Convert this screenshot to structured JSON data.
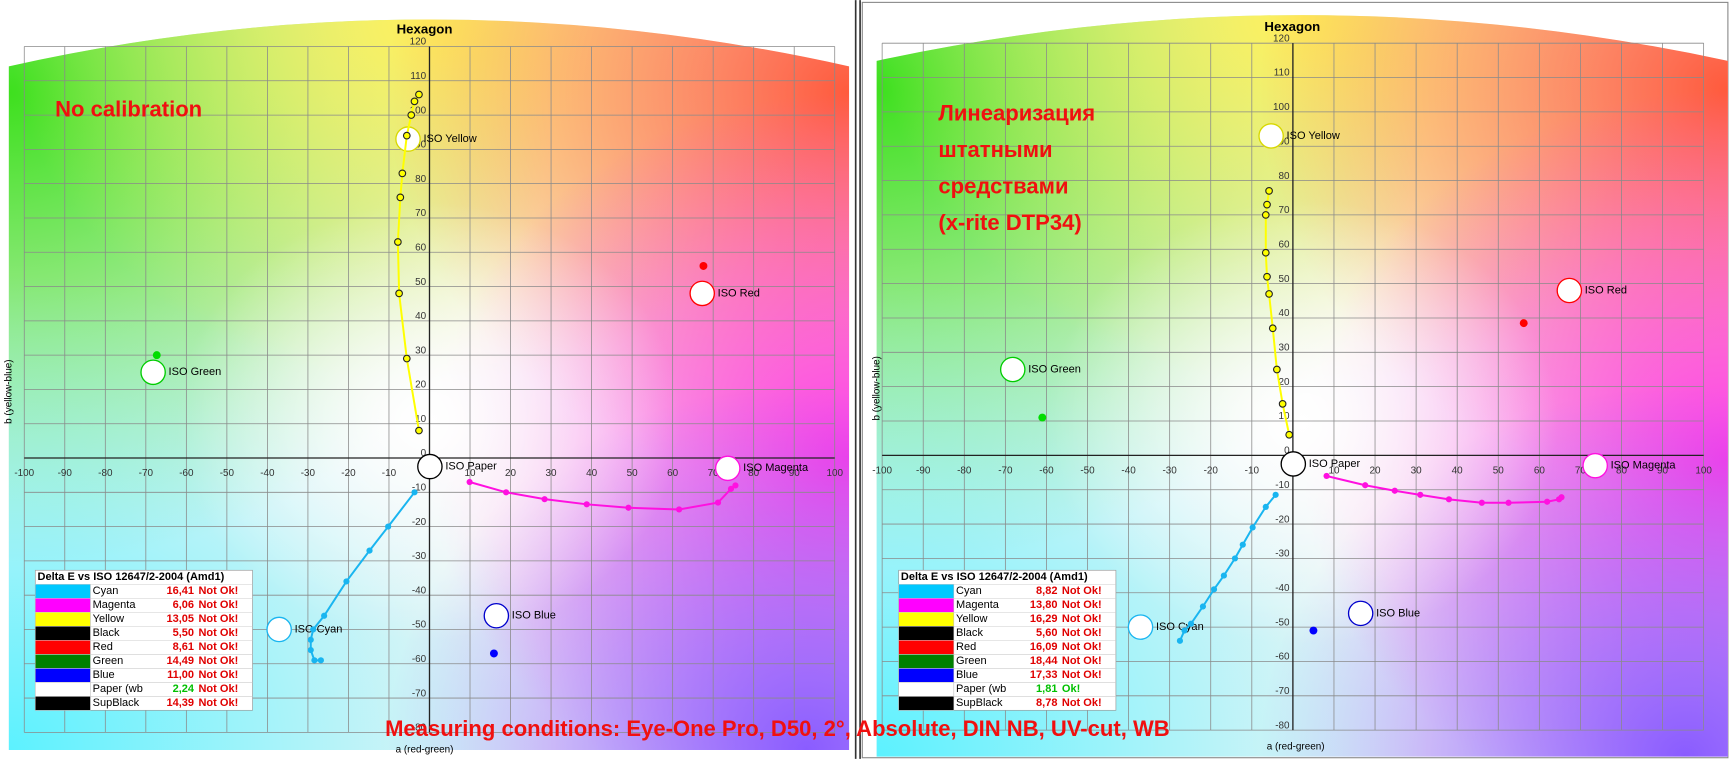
{
  "caption": "Measuring conditions: Eye-One Pro, D50, 2°, Absolute, DIN NB, UV-cut, WB",
  "chart_data": [
    {
      "type": "scatter",
      "title": "Hexagon",
      "x_label": "a (red-green)",
      "y_label": "b (yellow-blue)",
      "annotation": [
        "No calibration"
      ],
      "xlim": [
        -100,
        100
      ],
      "ylim": [
        -80,
        120
      ],
      "xticks": [
        -100,
        -90,
        -80,
        -70,
        -60,
        -50,
        -40,
        -30,
        -20,
        -10,
        0,
        10,
        20,
        30,
        40,
        50,
        60,
        70,
        80,
        90,
        100
      ],
      "yticks": [
        -80,
        -70,
        -60,
        -50,
        -40,
        -30,
        -20,
        -10,
        0,
        10,
        20,
        30,
        40,
        50,
        60,
        70,
        80,
        90,
        100,
        110,
        120
      ],
      "grid": true,
      "series": [
        {
          "color": "#ffff00",
          "line": true,
          "marker": "outlined",
          "x": [
            -2.6,
            -5.6,
            -7.5,
            -7.8,
            -7.2,
            -6.7,
            -5.6,
            -4.5,
            -3.7,
            -2.6
          ],
          "values": [
            8,
            29,
            48,
            63,
            76,
            83,
            94,
            100,
            104,
            106
          ]
        },
        {
          "color": "#19b5f0",
          "line": true,
          "marker": "dot",
          "x": [
            -3.7,
            -10.2,
            -14.8,
            -20.5,
            -26,
            -28.7,
            -29.3,
            -29.3,
            -28.4,
            -26.8
          ],
          "values": [
            -10,
            -20,
            -27,
            -36,
            -46,
            -50,
            -53,
            -56,
            -59,
            -59
          ]
        },
        {
          "color": "#ff10e0",
          "line": true,
          "marker": "dot",
          "x": [
            9.9,
            18.9,
            28.4,
            38.8,
            49.1,
            61.6,
            71.2,
            74.4,
            75.5
          ],
          "values": [
            -7,
            -10,
            -12,
            -13.5,
            -14.5,
            -15,
            -13,
            -9,
            -8
          ]
        },
        {
          "color": "#ff0000",
          "line": false,
          "marker": "dot",
          "x": [
            67.6
          ],
          "values": [
            56
          ]
        },
        {
          "color": "#00dd00",
          "line": false,
          "marker": "dot",
          "x": [
            -67.3
          ],
          "values": [
            30
          ]
        },
        {
          "color": "#0000ff",
          "line": false,
          "marker": "dot",
          "x": [
            15.9
          ],
          "values": [
            -57
          ]
        }
      ],
      "targets": [
        {
          "label": "ISO Yellow",
          "color": "#d8d800",
          "a": -5.3,
          "b": 93
        },
        {
          "label": "ISO Red",
          "color": "#ff0000",
          "a": 67.3,
          "b": 48
        },
        {
          "label": "ISO Green",
          "color": "#00cc00",
          "a": -68.2,
          "b": 25
        },
        {
          "label": "ISO Cyan",
          "color": "#19b5f0",
          "a": -37.1,
          "b": -50
        },
        {
          "label": "ISO Blue",
          "color": "#0000cc",
          "a": 16.5,
          "b": -46
        },
        {
          "label": "ISO Magenta",
          "color": "#ff10e0",
          "a": 73.6,
          "b": -3
        },
        {
          "label": "ISO Paper",
          "color": "#000000",
          "a": 0.1,
          "b": -2.5
        }
      ],
      "table": {
        "title": "Delta E vs ISO 12647/2-2004 (Amd1)",
        "rows": [
          {
            "name": "Cyan",
            "color": "#00c8ff",
            "value": "16,41",
            "value_color": "#e00000",
            "status": "Not Ok!",
            "status_color": "#e00000"
          },
          {
            "name": "Magenta",
            "color": "#ff00ff",
            "value": "6,06",
            "value_color": "#e00000",
            "status": "Not Ok!",
            "status_color": "#e00000"
          },
          {
            "name": "Yellow",
            "color": "#ffff00",
            "value": "13,05",
            "value_color": "#e00000",
            "status": "Not Ok!",
            "status_color": "#e00000"
          },
          {
            "name": "Black",
            "color": "#000000",
            "value": "5,50",
            "value_color": "#e00000",
            "status": "Not Ok!",
            "status_color": "#e00000"
          },
          {
            "name": "Red",
            "color": "#ff0000",
            "value": "8,61",
            "value_color": "#e00000",
            "status": "Not Ok!",
            "status_color": "#e00000"
          },
          {
            "name": "Green",
            "color": "#008000",
            "value": "14,49",
            "value_color": "#e00000",
            "status": "Not Ok!",
            "status_color": "#e00000"
          },
          {
            "name": "Blue",
            "color": "#0000ff",
            "value": "11,00",
            "value_color": "#e00000",
            "status": "Not Ok!",
            "status_color": "#e00000"
          },
          {
            "name": "Paper (wb",
            "color": "#ffffff",
            "value": "2,24",
            "value_color": "#00c000",
            "status": "Not Ok!",
            "status_color": "#e00000"
          },
          {
            "name": "SupBlack",
            "color": "#000000",
            "value": "14,39",
            "value_color": "#e00000",
            "status": "Not Ok!",
            "status_color": "#e00000"
          }
        ]
      }
    },
    {
      "type": "scatter",
      "title": "Hexagon",
      "x_label": "a (red-green)",
      "y_label": "b (yellow-blue)",
      "annotation": [
        "Линеаризация",
        "штатными",
        "средствами",
        "(x-rite DTP34)"
      ],
      "xlim": [
        -100,
        100
      ],
      "ylim": [
        -80,
        120
      ],
      "xticks": [
        -100,
        -90,
        -80,
        -70,
        -60,
        -50,
        -40,
        -30,
        -20,
        -10,
        0,
        10,
        20,
        30,
        40,
        50,
        60,
        70,
        80,
        90,
        100
      ],
      "yticks": [
        -80,
        -70,
        -60,
        -50,
        -40,
        -30,
        -20,
        -10,
        0,
        10,
        20,
        30,
        40,
        50,
        60,
        70,
        80,
        90,
        100,
        110,
        120
      ],
      "grid": true,
      "series": [
        {
          "color": "#ffff00",
          "line": true,
          "marker": "outlined",
          "x": [
            -0.9,
            -2.5,
            -3.9,
            -4.9,
            -5.8,
            -6.3,
            -6.6,
            -6.6,
            -6.3,
            -5.8
          ],
          "values": [
            6,
            15,
            25,
            37,
            47,
            52,
            59,
            70,
            73,
            77
          ]
        },
        {
          "color": "#19b5f0",
          "line": true,
          "marker": "dot",
          "x": [
            -4.2,
            -6.6,
            -9.8,
            -12.2,
            -14.1,
            -16.8,
            -19.2,
            -21.9,
            -24.8,
            -26.4,
            -27.5
          ],
          "values": [
            -11.5,
            -15,
            -21,
            -26,
            -30,
            -35,
            -39,
            -44,
            -49,
            -51,
            -54
          ]
        },
        {
          "color": "#ff10e0",
          "line": true,
          "marker": "dot",
          "x": [
            8.2,
            17.6,
            24.8,
            31,
            38,
            46,
            52.5,
            61.9,
            64.8,
            65.4
          ],
          "values": [
            -6,
            -8.7,
            -10.3,
            -11.5,
            -12.8,
            -13.8,
            -13.8,
            -13.5,
            -12.8,
            -12.2
          ]
        },
        {
          "color": "#ff0000",
          "line": false,
          "marker": "dot",
          "x": [
            56.2
          ],
          "values": [
            38.5
          ]
        },
        {
          "color": "#00dd00",
          "line": false,
          "marker": "dot",
          "x": [
            -61
          ],
          "values": [
            11
          ]
        },
        {
          "color": "#0000ff",
          "line": false,
          "marker": "dot",
          "x": [
            5
          ],
          "values": [
            -51
          ]
        }
      ],
      "targets": [
        {
          "label": "ISO Yellow",
          "color": "#d8d800",
          "a": -5.3,
          "b": 93
        },
        {
          "label": "ISO Red",
          "color": "#ff0000",
          "a": 67.3,
          "b": 48
        },
        {
          "label": "ISO Green",
          "color": "#00cc00",
          "a": -68.2,
          "b": 25
        },
        {
          "label": "ISO Cyan",
          "color": "#19b5f0",
          "a": -37.1,
          "b": -50
        },
        {
          "label": "ISO Blue",
          "color": "#0000cc",
          "a": 16.5,
          "b": -46
        },
        {
          "label": "ISO Magenta",
          "color": "#ff10e0",
          "a": 73.6,
          "b": -3
        },
        {
          "label": "ISO Paper",
          "color": "#000000",
          "a": 0.1,
          "b": -2.5
        }
      ],
      "table": {
        "title": "Delta E vs ISO 12647/2-2004 (Amd1)",
        "rows": [
          {
            "name": "Cyan",
            "color": "#00c8ff",
            "value": "8,82",
            "value_color": "#e00000",
            "status": "Not Ok!",
            "status_color": "#e00000"
          },
          {
            "name": "Magenta",
            "color": "#ff00ff",
            "value": "13,80",
            "value_color": "#e00000",
            "status": "Not Ok!",
            "status_color": "#e00000"
          },
          {
            "name": "Yellow",
            "color": "#ffff00",
            "value": "16,29",
            "value_color": "#e00000",
            "status": "Not Ok!",
            "status_color": "#e00000"
          },
          {
            "name": "Black",
            "color": "#000000",
            "value": "5,60",
            "value_color": "#e00000",
            "status": "Not Ok!",
            "status_color": "#e00000"
          },
          {
            "name": "Red",
            "color": "#ff0000",
            "value": "16,09",
            "value_color": "#e00000",
            "status": "Not Ok!",
            "status_color": "#e00000"
          },
          {
            "name": "Green",
            "color": "#008000",
            "value": "18,44",
            "value_color": "#e00000",
            "status": "Not Ok!",
            "status_color": "#e00000"
          },
          {
            "name": "Blue",
            "color": "#0000ff",
            "value": "17,33",
            "value_color": "#e00000",
            "status": "Not Ok!",
            "status_color": "#e00000"
          },
          {
            "name": "Paper (wb",
            "color": "#ffffff",
            "value": "1,81",
            "value_color": "#00c000",
            "status": "Ok!",
            "status_color": "#00c000"
          },
          {
            "name": "SupBlack",
            "color": "#000000",
            "value": "8,78",
            "value_color": "#e00000",
            "status": "Not Ok!",
            "status_color": "#e00000"
          }
        ]
      }
    }
  ]
}
